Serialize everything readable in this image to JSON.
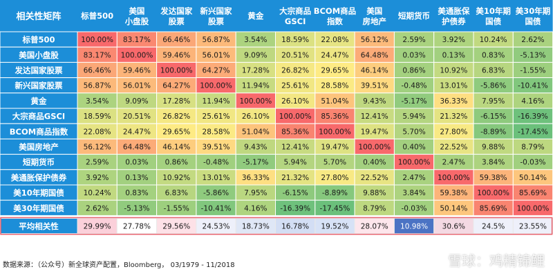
{
  "chart_data": {
    "type": "heatmap",
    "title": "相关性矩阵",
    "columns": [
      [
        "标普500"
      ],
      [
        "美国",
        "小盘股"
      ],
      [
        "发达国家",
        "股票"
      ],
      [
        "新兴国家",
        "股票"
      ],
      [
        "黄金"
      ],
      [
        "大宗商品",
        "GSCI"
      ],
      [
        "BCOM商品",
        "指数"
      ],
      [
        "美国",
        "房地产"
      ],
      [
        "短期货币"
      ],
      [
        "美通胀保",
        "护债券"
      ],
      [
        "美10年期",
        "国债"
      ],
      [
        "美30年期",
        "国债"
      ]
    ],
    "rows": [
      "标普500",
      "美国小盘股",
      "发达国家股票",
      "新兴国家股票",
      "黄金",
      "大宗商品GSCI",
      "BCOM商品指数",
      "美国房地产",
      "短期货币",
      "美通胀保护债券",
      "美10年期国债",
      "美30年期国债"
    ],
    "values": [
      [
        "100.00%",
        "83.17%",
        "66.46%",
        "56.87%",
        "3.54%",
        "18.59%",
        "22.08%",
        "56.12%",
        "2.59%",
        "3.92%",
        "10.24%",
        "2.62%"
      ],
      [
        "83.17%",
        "100.00%",
        "59.46%",
        "56.01%",
        "9.09%",
        "20.51%",
        "24.47%",
        "64.48%",
        "0.03%",
        "0.13%",
        "0.83%",
        "-5.13%"
      ],
      [
        "66.46%",
        "59.46%",
        "100.00%",
        "64.27%",
        "17.28%",
        "26.82%",
        "29.65%",
        "46.14%",
        "0.86%",
        "10.92%",
        "6.83%",
        "-1.55%"
      ],
      [
        "56.87%",
        "56.01%",
        "64.27%",
        "100.00%",
        "11.94%",
        "25.61%",
        "28.58%",
        "39.51%",
        "-0.48%",
        "13.01%",
        "-5.86%",
        "-10.41%"
      ],
      [
        "3.54%",
        "9.09%",
        "17.28%",
        "11.94%",
        "100.00%",
        "26.10%",
        "51.04%",
        "9.43%",
        "-5.17%",
        "36.33%",
        "7.95%",
        "4.16%"
      ],
      [
        "18.59%",
        "20.51%",
        "26.82%",
        "25.61%",
        "26.10%",
        "100.00%",
        "85.36%",
        "12.41%",
        "5.94%",
        "21.32%",
        "-6.15%",
        "-16.39%"
      ],
      [
        "22.08%",
        "24.47%",
        "29.65%",
        "28.58%",
        "51.04%",
        "85.36%",
        "100.00%",
        "19.47%",
        "5.70%",
        "27.80%",
        "-8.89%",
        "-17.45%"
      ],
      [
        "56.12%",
        "64.48%",
        "46.14%",
        "39.51%",
        "9.43%",
        "12.41%",
        "19.47%",
        "100.00%",
        "0.40%",
        "22.52%",
        "9.88%",
        "8.79%"
      ],
      [
        "2.59%",
        "0.03%",
        "0.86%",
        "-0.48%",
        "-5.17%",
        "5.94%",
        "5.70%",
        "0.40%",
        "100.00%",
        "2.47%",
        "3.84%",
        "-0.03%"
      ],
      [
        "3.92%",
        "0.13%",
        "10.92%",
        "13.01%",
        "36.33%",
        "21.32%",
        "27.80%",
        "22.52%",
        "2.47%",
        "100.00%",
        "59.38%",
        "50.14%"
      ],
      [
        "10.24%",
        "0.83%",
        "6.83%",
        "-5.86%",
        "7.95%",
        "-6.15%",
        "-8.89%",
        "9.88%",
        "3.84%",
        "59.38%",
        "100.00%",
        "85.69%"
      ],
      [
        "2.62%",
        "-5.13%",
        "-1.55%",
        "-10.41%",
        "4.16%",
        "-16.39%",
        "-17.45%",
        "8.79%",
        "-0.03%",
        "50.14%",
        "85.69%",
        "100.00%"
      ]
    ],
    "average_label": "平均相关性",
    "averages": [
      "29.99%",
      "27.78%",
      "29.56%",
      "24.53%",
      "18.73%",
      "16.78%",
      "19.52%",
      "28.07%",
      "10.98%",
      "30.6%",
      "24.5%",
      "23.55%"
    ],
    "average_colors": [
      "#fbd0da",
      "#ffffff",
      "#fde1e7",
      "#eef0fa",
      "#dfe7f6",
      "#d3def4",
      "#d7e2f6",
      "#fde6ec",
      "#4b73c4",
      "#f4d9e3",
      "#eef0fa",
      "#eef0fa"
    ],
    "colors": {
      "header_bg": "#1c8ed8",
      "header_text": "#ffffff",
      "grid_line": "#ffffff",
      "high": "#f8696b",
      "mid": "#ffeb84",
      "low": "#63be7b",
      "average_border": "#e8626e"
    }
  },
  "footer": "数据来源：（公众号）新全球资产配置，Bloomberg，  03/1979 - 11/2018",
  "watermark": "雪球：鸡精锦鲤"
}
